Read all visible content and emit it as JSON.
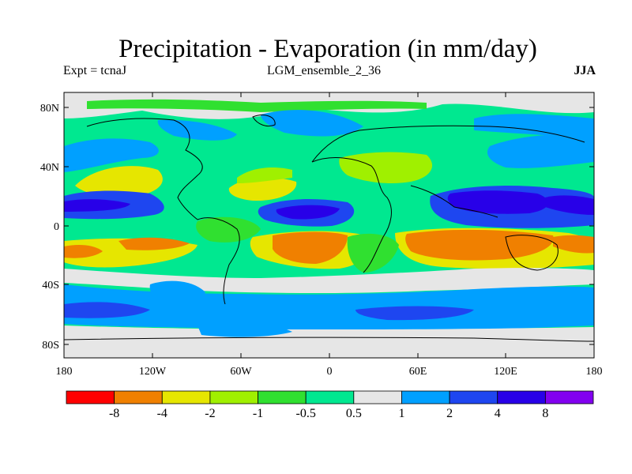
{
  "title": "Precipitation - Evaporation (in mm/day)",
  "subtitle_left": "Expt = tcnaJ",
  "subtitle_center": "LGM_ensemble_2_36",
  "subtitle_right": "JJA",
  "y_ticks": [
    "80N",
    "40N",
    "0",
    "40S",
    "80S"
  ],
  "x_ticks": [
    "180",
    "120W",
    "60W",
    "0",
    "60E",
    "120E",
    "180"
  ],
  "colorbar": {
    "colors": [
      "#ff0000",
      "#f08000",
      "#e6e600",
      "#a0f000",
      "#30e030",
      "#00e890",
      "#e6e6e6",
      "#00a0ff",
      "#1e46f0",
      "#2800e8",
      "#8200f0"
    ],
    "labels": [
      "-8",
      "-4",
      "-2",
      "-1",
      "-0.5",
      "0.5",
      "1",
      "2",
      "4",
      "8"
    ]
  }
}
